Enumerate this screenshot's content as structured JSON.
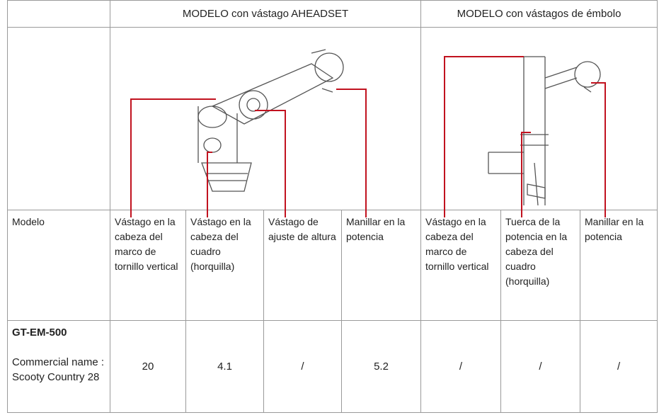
{
  "table": {
    "groups": [
      "MODELO con vástago AHEADSET",
      "MODELO con vástagos de émbolo"
    ],
    "columns": [
      "Modelo",
      "Vástago en la cabeza del marco de tornillo vertical",
      "Vástago en la cabeza del cuadro (horquilla)",
      "Vástago de ajuste de altura",
      "Manillar en la potencia",
      "Vástago en la cabeza del marco de tornillo vertical",
      "Tuerca de la potencia en la cabeza del cuadro (horquilla)",
      "Manillar en la potencia"
    ],
    "rows": [
      {
        "model": "GT-EM-500",
        "name": "Commercial name : Scooty Country 28",
        "cells": [
          "20",
          "4.1",
          "/",
          "5.2",
          "/",
          "/",
          "/"
        ]
      }
    ]
  }
}
